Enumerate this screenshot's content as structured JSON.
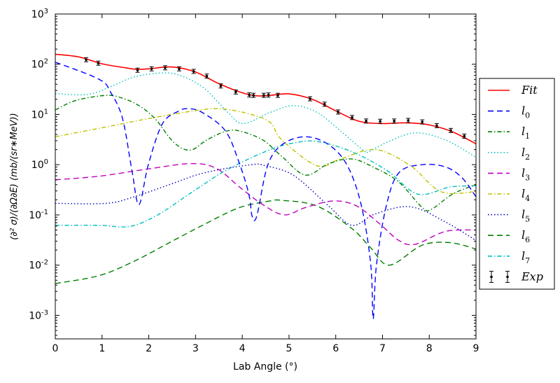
{
  "chart_data": {
    "type": "line",
    "title": "",
    "xlabel": "Lab Angle (°)",
    "ylabel": "(∂² σ)/(∂Ω∂E) (mb/(sr∗MeV))",
    "xlim": [
      0,
      9
    ],
    "ylim": [
      0.00034,
      1000
    ],
    "yscale": "log",
    "grid": false,
    "legend_position": "right, outside",
    "x_ticks": [
      "0",
      "1",
      "2",
      "3",
      "4",
      "5",
      "6",
      "7",
      "8",
      "9"
    ],
    "y_ticks": [
      {
        "base": "10",
        "exp": "3",
        "value": 1000
      },
      {
        "base": "10",
        "exp": "2",
        "value": 100
      },
      {
        "base": "10",
        "exp": "1",
        "value": 10
      },
      {
        "base": "10",
        "exp": "0",
        "value": 1
      },
      {
        "base": "10",
        "exp": "-1",
        "value": 0.1
      },
      {
        "base": "10",
        "exp": "-2",
        "value": 0.01
      },
      {
        "base": "10",
        "exp": "-3",
        "value": 0.001
      }
    ],
    "series": [
      {
        "name": "Fit",
        "sub": "",
        "color": "#ff0000",
        "style": "solid",
        "x": [
          0,
          0.5,
          1,
          1.5,
          1.75,
          2,
          2.5,
          3,
          3.5,
          4,
          4.3,
          4.6,
          5,
          5.5,
          6,
          6.5,
          7,
          7.5,
          8,
          8.5,
          9
        ],
        "y": [
          158,
          140,
          102,
          85,
          79,
          81,
          88,
          70,
          41,
          27,
          23.5,
          24,
          25.7,
          20,
          11.8,
          7.3,
          6.6,
          6.8,
          6.2,
          4.5,
          2.6
        ]
      },
      {
        "name": "l",
        "sub": "0",
        "color": "#0000ff",
        "style": "dashed",
        "x": [
          0,
          0.94,
          1.19,
          1.44,
          1.64,
          1.79,
          1.99,
          2.29,
          2.64,
          2.84,
          3.14,
          3.64,
          3.94,
          4.14,
          4.21,
          4.31,
          4.54,
          4.85,
          5.35,
          5.85,
          6.25,
          6.55,
          6.75,
          6.8,
          6.87,
          7.08,
          7.35,
          7.85,
          8.35,
          8.7,
          9
        ],
        "y": [
          110,
          50,
          27,
          8.2,
          0.76,
          0.16,
          1.0,
          6.5,
          11.7,
          13,
          11,
          4.7,
          1.05,
          0.26,
          0.095,
          0.095,
          0.95,
          2.5,
          3.6,
          2.5,
          0.95,
          0.15,
          0.01,
          0.00085,
          0.01,
          0.15,
          0.69,
          1.0,
          0.9,
          0.55,
          0.23
        ]
      },
      {
        "name": "l",
        "sub": "1",
        "color": "#007f00",
        "style": "dashdot",
        "x": [
          0,
          0.44,
          1.09,
          1.44,
          1.79,
          2.14,
          2.54,
          2.89,
          3.24,
          3.64,
          3.94,
          4.44,
          4.85,
          5.35,
          5.85,
          6.35,
          6.85,
          7.35,
          7.85,
          8.05,
          8.5,
          9
        ],
        "y": [
          12.3,
          19,
          24,
          21,
          15,
          8.1,
          2.75,
          1.95,
          3.1,
          4.6,
          4.7,
          3.1,
          1.45,
          0.62,
          1.05,
          1.3,
          0.85,
          0.45,
          0.14,
          0.13,
          0.26,
          0.4
        ]
      },
      {
        "name": "l",
        "sub": "2",
        "color": "#00bfbf",
        "style": "dotted",
        "x": [
          0,
          0.69,
          1.19,
          1.69,
          2.29,
          2.69,
          3.19,
          3.69,
          4.02,
          4.6,
          5.1,
          5.6,
          6.1,
          6.6,
          6.7,
          7.1,
          7.7,
          8.35,
          9
        ],
        "y": [
          26,
          25,
          36,
          56,
          67,
          59,
          33,
          11,
          6.6,
          11,
          15,
          11,
          4.7,
          1.9,
          1.8,
          2.8,
          4.3,
          3.1,
          1.4
        ]
      },
      {
        "name": "l",
        "sub": "3",
        "color": "#bf00bf",
        "style": "dashed",
        "x": [
          0,
          0.94,
          1.94,
          2.89,
          3.44,
          3.94,
          4.44,
          4.9,
          5.35,
          5.95,
          6.45,
          6.95,
          7.35,
          7.7,
          8.35,
          9
        ],
        "y": [
          0.5,
          0.59,
          0.81,
          1.05,
          0.85,
          0.36,
          0.16,
          0.1,
          0.14,
          0.19,
          0.15,
          0.065,
          0.031,
          0.026,
          0.047,
          0.05
        ]
      },
      {
        "name": "l",
        "sub": "4",
        "color": "#bfbf00",
        "style": "dashdot",
        "x": [
          0,
          0.94,
          1.94,
          2.94,
          3.54,
          4.19,
          4.6,
          4.85,
          5.6,
          6.1,
          6.85,
          7.6,
          8.25,
          9
        ],
        "y": [
          3.6,
          5.3,
          8.1,
          11.7,
          13,
          10,
          6.9,
          3.1,
          0.95,
          1.3,
          2.0,
          0.95,
          0.29,
          0.29
        ]
      },
      {
        "name": "l",
        "sub": "5",
        "color": "#0000bf",
        "style": "dotted",
        "x": [
          0,
          1.09,
          1.69,
          2.44,
          3.19,
          4.19,
          4.5,
          5.1,
          5.85,
          6.35,
          6.85,
          7.6,
          8.35,
          9
        ],
        "y": [
          0.17,
          0.17,
          0.23,
          0.4,
          0.69,
          1.0,
          0.95,
          0.61,
          0.15,
          0.062,
          0.105,
          0.145,
          0.072,
          0.031
        ]
      },
      {
        "name": "l",
        "sub": "6",
        "color": "#007f00",
        "style": "dashed",
        "x": [
          0,
          0.94,
          1.69,
          2.44,
          3.19,
          3.94,
          4.6,
          4.85,
          5.6,
          6.35,
          6.75,
          7.15,
          7.85,
          8.45,
          9
        ],
        "y": [
          0.0043,
          0.0062,
          0.012,
          0.028,
          0.065,
          0.14,
          0.19,
          0.195,
          0.15,
          0.053,
          0.022,
          0.01,
          0.025,
          0.028,
          0.021
        ]
      },
      {
        "name": "l",
        "sub": "7",
        "color": "#00bfbf",
        "style": "dashdot",
        "x": [
          0,
          0.94,
          1.59,
          2.19,
          2.94,
          3.69,
          4.6,
          5.1,
          5.6,
          6.35,
          7.1,
          7.75,
          8.45,
          9
        ],
        "y": [
          0.062,
          0.062,
          0.059,
          0.1,
          0.29,
          0.81,
          2.0,
          2.7,
          2.9,
          1.8,
          0.76,
          0.26,
          0.36,
          0.38
        ]
      }
    ],
    "experiment": {
      "name": "Exp",
      "color": "#000000",
      "x": [
        0.66,
        0.92,
        1.76,
        2.06,
        2.35,
        2.65,
        2.96,
        3.24,
        3.54,
        3.86,
        4.15,
        4.24,
        4.46,
        4.56,
        4.76,
        5.45,
        5.76,
        6.05,
        6.35,
        6.65,
        6.95,
        7.25,
        7.55,
        7.85,
        8.16,
        8.46,
        8.75
      ],
      "y": [
        123,
        105,
        76,
        81,
        85,
        81,
        72,
        58,
        37,
        28,
        24.5,
        24,
        24,
        24.4,
        24,
        20.5,
        16,
        11.2,
        8.7,
        7.4,
        7.3,
        7.4,
        7.6,
        7.1,
        6.0,
        4.8,
        3.7
      ]
    }
  }
}
